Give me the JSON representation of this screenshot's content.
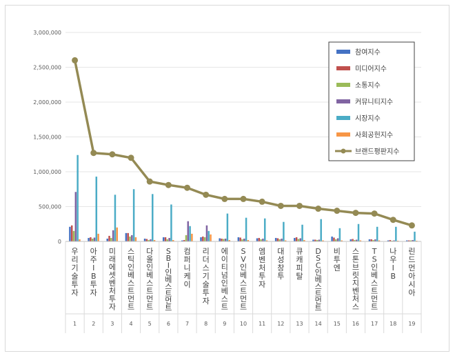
{
  "chart_data": {
    "type": "bar",
    "categories": [
      "우리기술투자",
      "아주IB투자",
      "미래에셋벤처투자",
      "스틱인베스트먼트",
      "다올인베스트먼트",
      "SBI인베스트먼트",
      "컴퍼니케이",
      "리더스 기술투자",
      "에이티넘인베스트",
      "SV인베스트먼트",
      "엠벤처투자",
      "대성창투",
      "큐캐피탈",
      "DSC인베스트먼트",
      "비투엔",
      "스톤브릿지벤처스",
      "TS인베스트먼트",
      "나우IB",
      "린드먼아시아"
    ],
    "numbers": [
      "1",
      "2",
      "3",
      "4",
      "5",
      "6",
      "7",
      "8",
      "9",
      "10",
      "11",
      "12",
      "13",
      "14",
      "15",
      "16",
      "17",
      "18",
      "19"
    ],
    "ylim": [
      0,
      3000000
    ],
    "yticks": [
      "0",
      "500,000",
      "1,000,000",
      "1,500,000",
      "2,000,000",
      "2,500,000",
      "3,000,000"
    ],
    "legend_position": "top-right",
    "series": [
      {
        "name": "참여지수",
        "color": "#4472c4",
        "type": "bar",
        "values": [
          210000,
          50000,
          40000,
          120000,
          40000,
          60000,
          15000,
          60000,
          45000,
          60000,
          45000,
          50000,
          50000,
          25000,
          70000,
          30000,
          30000,
          15000,
          15000
        ]
      },
      {
        "name": "미디어지수",
        "color": "#c0504d",
        "type": "bar",
        "values": [
          230000,
          60000,
          80000,
          120000,
          35000,
          60000,
          20000,
          70000,
          40000,
          55000,
          50000,
          45000,
          60000,
          25000,
          55000,
          35000,
          30000,
          20000,
          15000
        ]
      },
      {
        "name": "소통지수",
        "color": "#9bbb59",
        "type": "bar",
        "values": [
          150000,
          40000,
          50000,
          70000,
          20000,
          30000,
          90000,
          60000,
          35000,
          30000,
          30000,
          30000,
          35000,
          20000,
          30000,
          20000,
          20000,
          10000,
          15000
        ]
      },
      {
        "name": "커뮤니티지수",
        "color": "#8064a2",
        "type": "bar",
        "values": [
          710000,
          55000,
          160000,
          90000,
          30000,
          50000,
          290000,
          230000,
          40000,
          40000,
          40000,
          40000,
          45000,
          25000,
          45000,
          25000,
          30000,
          15000,
          20000
        ]
      },
      {
        "name": "시장지수",
        "color": "#4bacc6",
        "type": "bar",
        "values": [
          1240000,
          930000,
          670000,
          750000,
          680000,
          530000,
          220000,
          150000,
          400000,
          340000,
          330000,
          280000,
          240000,
          320000,
          190000,
          250000,
          210000,
          210000,
          140000
        ]
      },
      {
        "name": "사회공헌지수",
        "color": "#f79646",
        "type": "bar",
        "values": [
          30000,
          110000,
          200000,
          60000,
          20000,
          20000,
          110000,
          100000,
          20000,
          20000,
          15000,
          15000,
          20000,
          15000,
          15000,
          15000,
          15000,
          10000,
          10000
        ]
      },
      {
        "name": "브랜드평판지수",
        "color": "#948a54",
        "type": "line",
        "values": [
          2600000,
          1270000,
          1250000,
          1200000,
          860000,
          810000,
          770000,
          670000,
          610000,
          610000,
          570000,
          510000,
          510000,
          470000,
          440000,
          410000,
          400000,
          310000,
          230000
        ]
      }
    ]
  }
}
